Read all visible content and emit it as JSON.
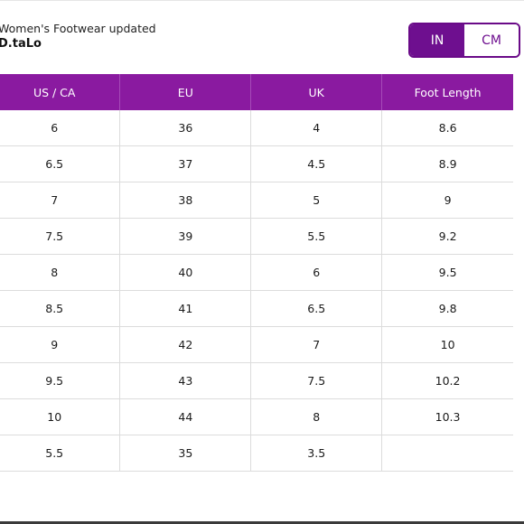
{
  "header": {
    "subtitle": "Women's Footwear updated",
    "brand": "D.taLo"
  },
  "unit_toggle": {
    "options": [
      {
        "label": "IN",
        "selected": true
      },
      {
        "label": "CM",
        "selected": false
      }
    ]
  },
  "colors": {
    "accent": "#8a1aa0",
    "accent_dark": "#6e0f8f"
  },
  "table": {
    "columns": [
      "US / CA",
      "EU",
      "UK",
      "Foot Length"
    ],
    "rows": [
      [
        "6",
        "36",
        "4",
        "8.6"
      ],
      [
        "6.5",
        "37",
        "4.5",
        "8.9"
      ],
      [
        "7",
        "38",
        "5",
        "9"
      ],
      [
        "7.5",
        "39",
        "5.5",
        "9.2"
      ],
      [
        "8",
        "40",
        "6",
        "9.5"
      ],
      [
        "8.5",
        "41",
        "6.5",
        "9.8"
      ],
      [
        "9",
        "42",
        "7",
        "10"
      ],
      [
        "9.5",
        "43",
        "7.5",
        "10.2"
      ],
      [
        "10",
        "44",
        "8",
        "10.3"
      ],
      [
        "5.5",
        "35",
        "3.5",
        ""
      ]
    ]
  }
}
